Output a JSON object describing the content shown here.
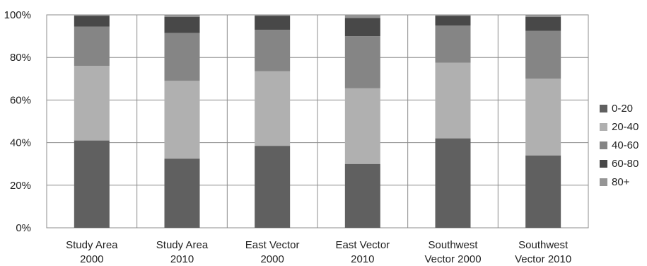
{
  "chart_data": {
    "type": "bar",
    "stacked": true,
    "percent": true,
    "categories": [
      [
        "Study Area",
        "2000"
      ],
      [
        "Study Area",
        "2010"
      ],
      [
        "East Vector",
        "2000"
      ],
      [
        "East Vector",
        "2010"
      ],
      [
        "Southwest",
        "Vector 2000"
      ],
      [
        "Southwest",
        "Vector 2010"
      ]
    ],
    "series": [
      {
        "name": "0-20",
        "color": "#606060",
        "values": [
          41,
          32.5,
          38.5,
          30,
          42,
          34
        ]
      },
      {
        "name": "20-40",
        "color": "#b0b0b0",
        "values": [
          35,
          36.5,
          35,
          35.5,
          35.5,
          36
        ]
      },
      {
        "name": "40-60",
        "color": "#858585",
        "values": [
          18.5,
          22.5,
          19.5,
          24.5,
          17.5,
          22.5
        ]
      },
      {
        "name": "60-80",
        "color": "#484848",
        "values": [
          5,
          7.5,
          6.5,
          8.5,
          4.5,
          6.5
        ]
      },
      {
        "name": "80+",
        "color": "#959595",
        "values": [
          0.5,
          1,
          0.5,
          1.5,
          0.5,
          1
        ]
      }
    ],
    "y_ticks": [
      "0%",
      "20%",
      "40%",
      "60%",
      "80%",
      "100%"
    ],
    "ylim": [
      0,
      100
    ],
    "grid": true,
    "legend_position": "right"
  }
}
